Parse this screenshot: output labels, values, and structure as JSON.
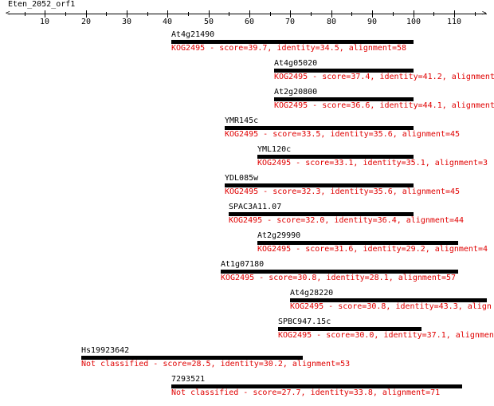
{
  "sequence_name": "Eten_2052_orf1",
  "axis": {
    "min": 1,
    "max": 118,
    "tick_labels": [
      "10",
      "20",
      "30",
      "40",
      "50",
      "60",
      "70",
      "80",
      "90",
      "100",
      "110"
    ],
    "tick_values": [
      10,
      20,
      30,
      40,
      50,
      60,
      70,
      80,
      90,
      100,
      110
    ]
  },
  "colors": {
    "bar": "#000000",
    "description": "#e00000",
    "text": "#000000"
  },
  "hits": [
    {
      "name": "At4g21490",
      "start": 41,
      "end": 100,
      "description": "KOG2495 - score=39.7, identity=34.5, alignment=58"
    },
    {
      "name": "At4g05020",
      "start": 66,
      "end": 100,
      "description": "KOG2495 - score=37.4, identity=41.2, alignment"
    },
    {
      "name": "At2g20800",
      "start": 66,
      "end": 100,
      "description": "KOG2495 - score=36.6, identity=44.1, alignment"
    },
    {
      "name": "YMR145c",
      "start": 54,
      "end": 100,
      "description": "KOG2495 - score=33.5, identity=35.6, alignment=45"
    },
    {
      "name": "YML120c",
      "start": 62,
      "end": 100,
      "description": "KOG2495 - score=33.1, identity=35.1, alignment=3"
    },
    {
      "name": "YDL085w",
      "start": 54,
      "end": 100,
      "description": "KOG2495 - score=32.3, identity=35.6, alignment=45"
    },
    {
      "name": "SPAC3A11.07",
      "start": 55,
      "end": 100,
      "description": "KOG2495 - score=32.0, identity=36.4, alignment=44"
    },
    {
      "name": "At2g29990",
      "start": 62,
      "end": 111,
      "description": "KOG2495 - score=31.6, identity=29.2, alignment=4"
    },
    {
      "name": "At1g07180",
      "start": 53,
      "end": 111,
      "description": "KOG2495 - score=30.8, identity=28.1, alignment=57"
    },
    {
      "name": "At4g28220",
      "start": 70,
      "end": 118,
      "description": "KOG2495 - score=30.8, identity=43.3, align"
    },
    {
      "name": "SPBC947.15c",
      "start": 67,
      "end": 102,
      "description": "KOG2495 - score=30.0, identity=37.1, alignmen"
    },
    {
      "name": "Hs19923642",
      "start": 19,
      "end": 73,
      "description": "Not classified - score=28.5, identity=30.2, alignment=53"
    },
    {
      "name": "7293521",
      "start": 41,
      "end": 112,
      "description": "Not classified - score=27.7, identity=33.8, alignment=71"
    }
  ]
}
